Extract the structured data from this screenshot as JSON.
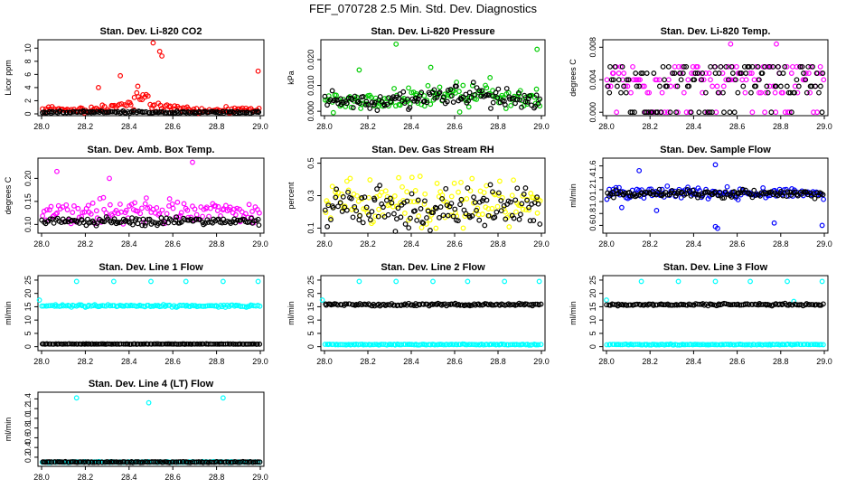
{
  "page": {
    "title": "FEF_070728  2.5 Min. Std. Dev. Diagnostics"
  },
  "colors": {
    "red": "#ff0000",
    "green": "#00cc00",
    "magenta": "#ff00ff",
    "yellow": "#ffff00",
    "blue": "#0000ff",
    "cyan": "#00ffff",
    "black": "#000000"
  },
  "chart_data": [
    {
      "type": "scatter",
      "title": "Stan. Dev. Li-820 CO2",
      "ylabel": "Licor ppm",
      "xlim": [
        28.0,
        29.0
      ],
      "xticks": [
        "28.0",
        "28.2",
        "28.4",
        "28.6",
        "28.8",
        "29.0"
      ],
      "ylim": [
        0,
        11
      ],
      "yticks": [
        "0",
        "2",
        "4",
        "6",
        "8",
        "10"
      ],
      "series": [
        {
          "color": "#ff0000",
          "base": 0.6,
          "spread": 0.6,
          "outliers": [
            [
              28.51,
              10.8
            ],
            [
              28.54,
              9.5
            ],
            [
              28.55,
              8.8
            ],
            [
              28.99,
              6.5
            ],
            [
              28.36,
              5.8
            ],
            [
              28.44,
              4.2
            ],
            [
              28.26,
              4.0
            ]
          ],
          "humps": [
            [
              28.45,
              2.5,
              0.12
            ]
          ]
        },
        {
          "color": "#000000",
          "base": 0.25,
          "spread": 0.2,
          "outliers": [],
          "humps": []
        }
      ]
    },
    {
      "type": "scatter",
      "title": "Stan. Dev. Li-820 Pressure",
      "ylabel": "kPa",
      "xlim": [
        28.0,
        29.0
      ],
      "xticks": [
        "28.0",
        "28.2",
        "28.4",
        "28.6",
        "28.8",
        "29.0"
      ],
      "ylim": [
        -0.001,
        0.027
      ],
      "yticks": [
        "0.000",
        "0.010",
        "0.020"
      ],
      "series": [
        {
          "color": "#00cc00",
          "base": 0.004,
          "spread": 0.005,
          "outliers": [
            [
              28.33,
              0.026
            ],
            [
              28.98,
              0.024
            ],
            [
              28.16,
              0.016
            ],
            [
              28.49,
              0.017
            ]
          ],
          "humps": [
            [
              28.65,
              0.006,
              0.2
            ]
          ]
        },
        {
          "color": "#000000",
          "base": 0.004,
          "spread": 0.004,
          "outliers": [],
          "humps": [
            [
              28.65,
              0.005,
              0.2
            ]
          ]
        }
      ]
    },
    {
      "type": "scatter",
      "title": "Stan. Dev. Li-820 Temp.",
      "ylabel": "degrees C",
      "xlim": [
        28.0,
        29.0
      ],
      "xticks": [
        "28.0",
        "28.2",
        "28.4",
        "28.6",
        "28.8",
        "29.0"
      ],
      "ylim": [
        -0.0002,
        0.0087
      ],
      "yticks": [
        "0.000",
        "0.004",
        "0.008"
      ],
      "levels": [
        0,
        0.0024,
        0.0032,
        0.004,
        0.0048,
        0.0056
      ],
      "series": [
        {
          "color": "#ff00ff",
          "base": 0.004,
          "spread": 0.0018,
          "outliers": [
            [
              28.57,
              0.0084
            ],
            [
              28.78,
              0.0084
            ]
          ],
          "humps": []
        },
        {
          "color": "#000000",
          "base": 0.004,
          "spread": 0.0016,
          "outliers": [],
          "humps": []
        }
      ]
    },
    {
      "type": "scatter",
      "title": "Stan. Dev. Amb. Box Temp.",
      "ylabel": "degrees C",
      "xlim": [
        28.0,
        29.0
      ],
      "xticks": [
        "28.0",
        "28.2",
        "28.4",
        "28.6",
        "28.8",
        "29.0"
      ],
      "ylim": [
        0.085,
        0.24
      ],
      "yticks": [
        "0.10",
        "0.15",
        "0.20"
      ],
      "series": [
        {
          "color": "#ff00ff",
          "base": 0.13,
          "spread": 0.03,
          "outliers": [
            [
              28.69,
              0.235
            ],
            [
              28.07,
              0.215
            ],
            [
              28.31,
              0.2
            ]
          ],
          "humps": []
        },
        {
          "color": "#000000",
          "base": 0.107,
          "spread": 0.01,
          "outliers": [],
          "humps": []
        }
      ]
    },
    {
      "type": "scatter",
      "title": "Stan. Dev. Gas Stream RH",
      "ylabel": "percent",
      "xlim": [
        28.0,
        29.0
      ],
      "xticks": [
        "28.0",
        "28.2",
        "28.4",
        "28.6",
        "28.8",
        "29.0"
      ],
      "ylim": [
        0.08,
        0.52
      ],
      "yticks": [
        "0.1",
        "0.3",
        "0.5"
      ],
      "series": [
        {
          "color": "#ffff00",
          "base": 0.25,
          "spread": 0.17,
          "outliers": [],
          "humps": []
        },
        {
          "color": "#000000",
          "base": 0.22,
          "spread": 0.15,
          "outliers": [],
          "humps": []
        }
      ]
    },
    {
      "type": "scatter",
      "title": "Stan. Dev. Sample Flow",
      "ylabel": "ml/min",
      "xlim": [
        28.0,
        29.0
      ],
      "xticks": [
        "28.0",
        "28.2",
        "28.4",
        "28.6",
        "28.8",
        "29.0"
      ],
      "ylim": [
        0.5,
        1.7
      ],
      "yticks": [
        "0.6",
        "0.8",
        "1.0",
        "1.2",
        "1.4",
        "1.6"
      ],
      "series": [
        {
          "color": "#0000ff",
          "base": 1.15,
          "spread": 0.12,
          "outliers": [
            [
              28.5,
              1.62
            ],
            [
              28.15,
              1.52
            ],
            [
              28.5,
              0.58
            ],
            [
              28.51,
              0.55
            ],
            [
              28.77,
              0.64
            ],
            [
              28.99,
              0.6
            ],
            [
              28.07,
              0.9
            ],
            [
              28.23,
              0.85
            ]
          ],
          "humps": []
        },
        {
          "color": "#000000",
          "base": 1.13,
          "spread": 0.08,
          "outliers": [],
          "humps": []
        }
      ]
    },
    {
      "type": "scatter",
      "title": "Stan. Dev. Line 1 Flow",
      "ylabel": "ml/min",
      "xlim": [
        28.0,
        29.0
      ],
      "xticks": [
        "28.0",
        "28.2",
        "28.4",
        "28.6",
        "28.8",
        "29.0"
      ],
      "ylim": [
        -0.8,
        26
      ],
      "yticks": [
        "0",
        "5",
        "10",
        "15",
        "20",
        "25"
      ],
      "series": [
        {
          "color": "#00ffff",
          "base": 15.3,
          "spread": 0.5,
          "outliers": [
            [
              28.16,
              24.5
            ],
            [
              28.33,
              24.5
            ],
            [
              28.5,
              24.5
            ],
            [
              28.66,
              24.5
            ],
            [
              28.83,
              24.5
            ],
            [
              28.99,
              24.5
            ],
            [
              27.99,
              17.5
            ]
          ],
          "humps": []
        },
        {
          "color": "#000000",
          "base": 1.0,
          "spread": 0.1,
          "outliers": [],
          "humps": []
        }
      ]
    },
    {
      "type": "scatter",
      "title": "Stan. Dev. Line 2 Flow",
      "ylabel": "ml/min",
      "xlim": [
        28.0,
        29.0
      ],
      "xticks": [
        "28.0",
        "28.2",
        "28.4",
        "28.6",
        "28.8",
        "29.0"
      ],
      "ylim": [
        -0.8,
        26
      ],
      "yticks": [
        "0",
        "5",
        "10",
        "15",
        "20",
        "25"
      ],
      "series": [
        {
          "color": "#00ffff",
          "base": 0.8,
          "spread": 0.2,
          "outliers": [
            [
              28.16,
              24.5
            ],
            [
              28.33,
              24.5
            ],
            [
              28.5,
              24.5
            ],
            [
              28.66,
              24.5
            ],
            [
              28.83,
              24.5
            ],
            [
              28.99,
              24.5
            ],
            [
              27.99,
              17.5
            ]
          ],
          "humps": []
        },
        {
          "color": "#000000",
          "base": 15.8,
          "spread": 0.5,
          "outliers": [],
          "humps": []
        }
      ]
    },
    {
      "type": "scatter",
      "title": "Stan. Dev. Line 3 Flow",
      "ylabel": "ml/min",
      "xlim": [
        28.0,
        29.0
      ],
      "xticks": [
        "28.0",
        "28.2",
        "28.4",
        "28.6",
        "28.8",
        "29.0"
      ],
      "ylim": [
        -0.8,
        26
      ],
      "yticks": [
        "0",
        "5",
        "10",
        "15",
        "20",
        "25"
      ],
      "series": [
        {
          "color": "#00ffff",
          "base": 0.8,
          "spread": 0.2,
          "outliers": [
            [
              28.16,
              24.5
            ],
            [
              28.33,
              24.5
            ],
            [
              28.5,
              24.5
            ],
            [
              28.66,
              24.5
            ],
            [
              28.83,
              24.5
            ],
            [
              28.99,
              24.5
            ],
            [
              28.0,
              17.5
            ],
            [
              28.86,
              17.0
            ]
          ],
          "humps": []
        },
        {
          "color": "#000000",
          "base": 15.8,
          "spread": 0.5,
          "outliers": [],
          "humps": []
        }
      ]
    },
    {
      "type": "scatter",
      "title": "Stan. Dev. Line 4 (LT) Flow",
      "ylabel": "ml/min",
      "xlim": [
        28.0,
        29.0
      ],
      "xticks": [
        "28.0",
        "28.2",
        "28.4",
        "28.6",
        "28.8",
        "29.0"
      ],
      "ylim": [
        0.05,
        1.5
      ],
      "yticks": [
        "0.2",
        "0.4",
        "0.6",
        "0.8",
        "1.0",
        "1.2",
        "1.4"
      ],
      "series": [
        {
          "color": "#00ffff",
          "base": 0.1,
          "spread": 0.01,
          "outliers": [
            [
              28.16,
              1.42
            ],
            [
              28.83,
              1.42
            ],
            [
              28.49,
              1.32
            ]
          ],
          "humps": []
        },
        {
          "color": "#000000",
          "base": 0.1,
          "spread": 0.01,
          "outliers": [],
          "humps": []
        }
      ]
    }
  ]
}
